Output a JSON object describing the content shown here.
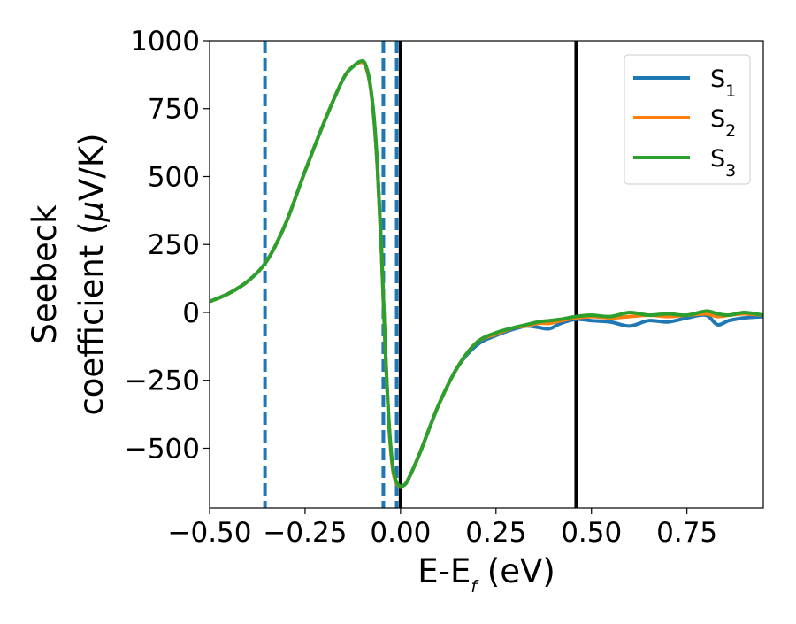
{
  "chart_data": {
    "type": "line",
    "title": "",
    "xlabel": {
      "main": "E-E",
      "sub": "f",
      "suffix": " (eV)"
    },
    "ylabel": {
      "line1": "Seebeck",
      "line2_pre": "coefficient  (",
      "line2_mu": "μ",
      "line2_post": "V/K)"
    },
    "xlim": [
      -0.5,
      0.95
    ],
    "ylim": [
      -720,
      1000
    ],
    "xticks": [
      -0.5,
      -0.25,
      0.0,
      0.25,
      0.5,
      0.75
    ],
    "xtick_labels": [
      "−0.50",
      "−0.25",
      "0.00",
      "0.25",
      "0.50",
      "0.75"
    ],
    "yticks": [
      1000,
      750,
      500,
      250,
      0,
      -250,
      -500
    ],
    "ytick_labels": [
      "1000",
      "750",
      "500",
      "250",
      "0",
      "−250",
      "−500"
    ],
    "grid": false,
    "legend_position": "top-right",
    "vlines_dashed": [
      -0.355,
      -0.045,
      -0.01
    ],
    "vlines_solid": [
      0.0,
      0.46
    ],
    "series": [
      {
        "name": "S",
        "sub": "1",
        "color": "#1f77b4",
        "x": [
          -0.5,
          -0.45,
          -0.4,
          -0.35,
          -0.3,
          -0.25,
          -0.2,
          -0.15,
          -0.12,
          -0.1,
          -0.09,
          -0.08,
          -0.07,
          -0.06,
          -0.05,
          -0.04,
          -0.03,
          -0.02,
          -0.01,
          0.0,
          0.01,
          0.02,
          0.05,
          0.1,
          0.15,
          0.2,
          0.25,
          0.3,
          0.33,
          0.36,
          0.39,
          0.42,
          0.46,
          0.5,
          0.55,
          0.6,
          0.65,
          0.7,
          0.75,
          0.8,
          0.83,
          0.86,
          0.9,
          0.95
        ],
        "y": [
          40,
          70,
          115,
          190,
          330,
          520,
          700,
          860,
          910,
          920,
          900,
          840,
          720,
          520,
          230,
          -130,
          -420,
          -580,
          -630,
          -640,
          -635,
          -615,
          -520,
          -340,
          -200,
          -120,
          -85,
          -60,
          -50,
          -55,
          -60,
          -40,
          -25,
          -30,
          -35,
          -50,
          -30,
          -35,
          -20,
          -10,
          -45,
          -30,
          -20,
          -15
        ]
      },
      {
        "name": "S",
        "sub": "2",
        "color": "#ff7f0e",
        "x": [
          -0.5,
          -0.45,
          -0.4,
          -0.35,
          -0.3,
          -0.25,
          -0.2,
          -0.15,
          -0.12,
          -0.1,
          -0.09,
          -0.08,
          -0.07,
          -0.06,
          -0.05,
          -0.04,
          -0.03,
          -0.02,
          -0.01,
          0.0,
          0.01,
          0.02,
          0.05,
          0.1,
          0.15,
          0.2,
          0.25,
          0.3,
          0.33,
          0.36,
          0.39,
          0.42,
          0.46,
          0.5,
          0.55,
          0.6,
          0.65,
          0.7,
          0.75,
          0.8,
          0.83,
          0.86,
          0.9,
          0.95
        ],
        "y": [
          40,
          70,
          115,
          190,
          330,
          520,
          700,
          860,
          910,
          920,
          900,
          840,
          720,
          520,
          230,
          -130,
          -420,
          -580,
          -630,
          -640,
          -635,
          -615,
          -520,
          -340,
          -200,
          -110,
          -80,
          -55,
          -50,
          -40,
          -40,
          -30,
          -20,
          -15,
          -20,
          -15,
          -10,
          -15,
          -10,
          -5,
          -15,
          -10,
          -5,
          -10
        ]
      },
      {
        "name": "S",
        "sub": "3",
        "color": "#2ca02c",
        "x": [
          -0.5,
          -0.45,
          -0.4,
          -0.35,
          -0.3,
          -0.25,
          -0.2,
          -0.15,
          -0.12,
          -0.1,
          -0.09,
          -0.08,
          -0.07,
          -0.06,
          -0.05,
          -0.04,
          -0.03,
          -0.02,
          -0.01,
          0.0,
          0.01,
          0.02,
          0.05,
          0.1,
          0.15,
          0.2,
          0.25,
          0.3,
          0.33,
          0.36,
          0.39,
          0.42,
          0.46,
          0.5,
          0.55,
          0.6,
          0.65,
          0.7,
          0.75,
          0.8,
          0.83,
          0.86,
          0.9,
          0.95
        ],
        "y": [
          40,
          70,
          115,
          190,
          330,
          520,
          700,
          860,
          910,
          925,
          905,
          845,
          725,
          525,
          235,
          -125,
          -410,
          -570,
          -625,
          -640,
          -635,
          -615,
          -520,
          -340,
          -200,
          -110,
          -75,
          -55,
          -45,
          -35,
          -30,
          -25,
          -15,
          -10,
          -15,
          0,
          -10,
          -5,
          -10,
          5,
          -5,
          -10,
          0,
          -10
        ]
      }
    ]
  }
}
